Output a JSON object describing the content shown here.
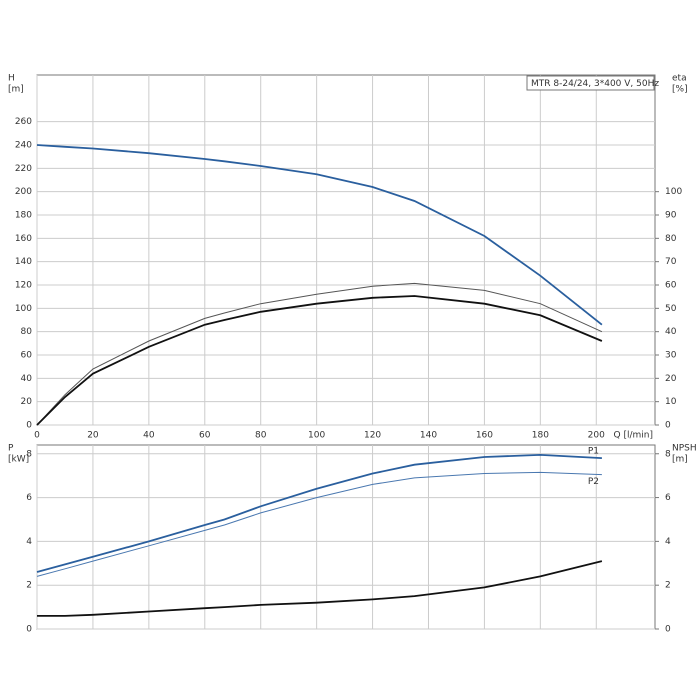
{
  "chart_data": [
    {
      "type": "line",
      "title": "MTR 8-24/24, 3*400 V, 50Hz",
      "y_label": "H",
      "y_unit": "[m]",
      "y2_label": "eta",
      "y2_unit": "[%]",
      "x_label": "Q [l/min]",
      "x": [
        0,
        10,
        20,
        40,
        60,
        67,
        80,
        100,
        120,
        135,
        160,
        180,
        202
      ],
      "xlim": [
        0,
        221
      ],
      "xticks": [
        0,
        20,
        40,
        60,
        80,
        100,
        120,
        140,
        160,
        180,
        200
      ],
      "ylim": [
        0,
        300
      ],
      "yticks": [
        0,
        20,
        40,
        60,
        80,
        100,
        120,
        140,
        160,
        180,
        200,
        220,
        240,
        260
      ],
      "y2lim": [
        0,
        150
      ],
      "y2ticks": [
        0,
        10,
        20,
        30,
        40,
        50,
        60,
        70,
        80,
        90,
        100
      ],
      "grid": true,
      "series": [
        {
          "color": "#2a5f9e",
          "width": 1.8,
          "values": [
            240,
            238.5,
            237,
            233,
            228,
            226,
            222,
            215,
            204,
            192,
            162,
            128,
            86
          ]
        },
        {
          "color": "#555555",
          "width": 1,
          "axis": "y2",
          "values": [
            0,
            13,
            24,
            36,
            45.7,
            48,
            52,
            56,
            59.5,
            60.7,
            57.7,
            52,
            40
          ]
        },
        {
          "color": "#111111",
          "width": 1.8,
          "axis": "y2",
          "values": [
            0,
            12,
            22,
            33.5,
            43,
            45,
            48.5,
            52,
            54.5,
            55.3,
            52,
            47,
            36
          ]
        }
      ]
    },
    {
      "type": "line",
      "y_label": "P",
      "y_unit": "[kW]",
      "y2_label": "NPSH",
      "y2_unit": "[m]",
      "x": [
        0,
        10,
        20,
        40,
        60,
        67,
        80,
        100,
        120,
        135,
        160,
        180,
        202
      ],
      "xlim": [
        0,
        221
      ],
      "xticks": [
        0,
        20,
        40,
        60,
        80,
        100,
        120,
        140,
        160,
        180,
        200
      ],
      "ylim": [
        0,
        8.4
      ],
      "yticks": [
        0,
        2,
        4,
        6,
        8
      ],
      "y2lim": [
        0,
        8.4
      ],
      "y2ticks": [
        0,
        2,
        4,
        6,
        8
      ],
      "grid": true,
      "series": [
        {
          "name": "P1",
          "color": "#2a5f9e",
          "width": 1.8,
          "values": [
            2.6,
            2.95,
            3.3,
            4.0,
            4.75,
            5.0,
            5.6,
            6.4,
            7.1,
            7.5,
            7.85,
            7.95,
            7.8
          ]
        },
        {
          "name": "P2",
          "color": "#4a78b0",
          "width": 1,
          "values": [
            2.4,
            2.75,
            3.1,
            3.8,
            4.5,
            4.75,
            5.3,
            6.0,
            6.6,
            6.9,
            7.1,
            7.15,
            7.05
          ]
        },
        {
          "color": "#111111",
          "width": 1.8,
          "axis": "y2",
          "values": [
            0.6,
            0.6,
            0.65,
            0.8,
            0.95,
            1.0,
            1.1,
            1.2,
            1.35,
            1.5,
            1.9,
            2.4,
            3.1
          ]
        }
      ]
    }
  ]
}
